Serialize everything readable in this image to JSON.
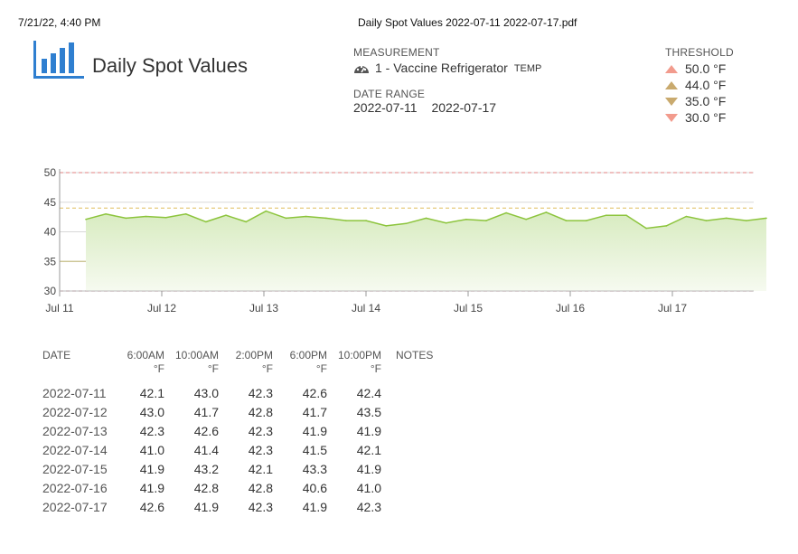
{
  "header": {
    "print_date": "7/21/22, 4:40 PM",
    "file_name": "Daily Spot Values 2022-07-11 2022-07-17.pdf"
  },
  "report": {
    "title": "Daily Spot Values",
    "logo_icon": "bar-chart-icon"
  },
  "measurement": {
    "caption": "MEASUREMENT",
    "icon": "gauge-icon",
    "name": "1 - Vaccine Refrigerator",
    "type": "TEMP"
  },
  "date_range": {
    "caption": "DATE RANGE",
    "start": "2022-07-11",
    "end": "2022-07-17"
  },
  "threshold": {
    "caption": "THRESHOLD",
    "items": [
      {
        "value": "50.0 °F",
        "icon": "triangle-up-icon",
        "color": "#f29b8d"
      },
      {
        "value": "44.0 °F",
        "icon": "triangle-up-icon",
        "color": "#c9aa6e"
      },
      {
        "value": "35.0 °F",
        "icon": "triangle-down-icon",
        "color": "#c9aa6e"
      },
      {
        "value": "30.0 °F",
        "icon": "triangle-down-icon",
        "color": "#f29b8d"
      }
    ]
  },
  "chart_data": {
    "type": "area",
    "ylim": [
      30,
      50
    ],
    "yticks": [
      30,
      35,
      40,
      45,
      50
    ],
    "x_tick_labels": [
      "Jul 11",
      "Jul 12",
      "Jul 13",
      "Jul 14",
      "Jul 15",
      "Jul 16",
      "Jul 17"
    ],
    "thresholds": [
      {
        "value": 50,
        "color": "#e89a9a",
        "style": "dashed"
      },
      {
        "value": 44,
        "color": "#e8d08a",
        "style": "dashed"
      },
      {
        "value": 35,
        "color": "#c9c08a",
        "style": "solid"
      },
      {
        "value": 30,
        "color": "#d08a9a",
        "style": "dashed"
      }
    ],
    "line_color": "#8cc43c",
    "fill_color": "#e9f4dc",
    "grid": true,
    "series": [
      {
        "values": [
          42.1,
          43.0,
          42.3,
          42.6,
          42.4,
          43.0,
          41.7,
          42.8,
          41.7,
          43.5,
          42.3,
          42.6,
          42.3,
          41.9,
          41.9,
          41.0,
          41.4,
          42.3,
          41.5,
          42.1,
          41.9,
          43.2,
          42.1,
          43.3,
          41.9,
          41.9,
          42.8,
          42.8,
          40.6,
          41.0,
          42.6,
          41.9,
          42.3,
          41.9,
          42.3
        ]
      }
    ]
  },
  "table": {
    "columns": [
      {
        "label": "DATE",
        "unit": ""
      },
      {
        "label": "6:00AM",
        "unit": "°F"
      },
      {
        "label": "10:00AM",
        "unit": "°F"
      },
      {
        "label": "2:00PM",
        "unit": "°F"
      },
      {
        "label": "6:00PM",
        "unit": "°F"
      },
      {
        "label": "10:00PM",
        "unit": "°F"
      },
      {
        "label": "NOTES",
        "unit": ""
      }
    ],
    "rows": [
      {
        "date": "2022-07-11",
        "values": [
          "42.1",
          "43.0",
          "42.3",
          "42.6",
          "42.4"
        ],
        "notes": ""
      },
      {
        "date": "2022-07-12",
        "values": [
          "43.0",
          "41.7",
          "42.8",
          "41.7",
          "43.5"
        ],
        "notes": ""
      },
      {
        "date": "2022-07-13",
        "values": [
          "42.3",
          "42.6",
          "42.3",
          "41.9",
          "41.9"
        ],
        "notes": ""
      },
      {
        "date": "2022-07-14",
        "values": [
          "41.0",
          "41.4",
          "42.3",
          "41.5",
          "42.1"
        ],
        "notes": ""
      },
      {
        "date": "2022-07-15",
        "values": [
          "41.9",
          "43.2",
          "42.1",
          "43.3",
          "41.9"
        ],
        "notes": ""
      },
      {
        "date": "2022-07-16",
        "values": [
          "41.9",
          "42.8",
          "42.8",
          "40.6",
          "41.0"
        ],
        "notes": ""
      },
      {
        "date": "2022-07-17",
        "values": [
          "42.6",
          "41.9",
          "42.3",
          "41.9",
          "42.3"
        ],
        "notes": ""
      }
    ]
  }
}
